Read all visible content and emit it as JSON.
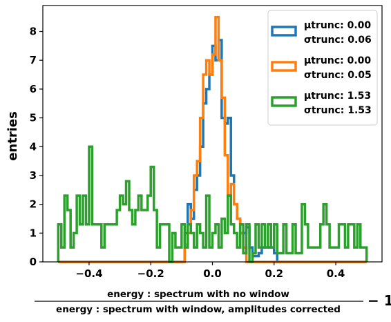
{
  "chart_data": {
    "type": "histogram",
    "xlim": [
      -0.55,
      0.55
    ],
    "ylim": [
      0,
      8.9
    ],
    "x_ticks": [
      -0.4,
      -0.2,
      0.0,
      0.2,
      0.4
    ],
    "x_tick_labels": [
      "−0.4",
      "−0.2",
      "0.0",
      "0.2",
      "0.4"
    ],
    "y_ticks": [
      0,
      1,
      2,
      3,
      4,
      5,
      6,
      7,
      8
    ],
    "y_tick_labels": [
      "0",
      "1",
      "2",
      "3",
      "4",
      "5",
      "6",
      "7",
      "8"
    ],
    "ylabel": "entries",
    "xlabel": {
      "numerator": "energy :  spectrum with no window",
      "denominator": "energy : spectrum with window,  amplitudes corrected",
      "suffix": "− 1"
    },
    "legend_position": "top-right",
    "series": [
      {
        "mu_label": "μtrunc: 0.00",
        "sigma_label": "σtrunc: 0.06",
        "color": "#1f77b4",
        "bins": [
          [
            -0.5,
            0
          ],
          [
            -0.1,
            0
          ],
          [
            -0.09,
            1
          ],
          [
            -0.08,
            2
          ],
          [
            -0.07,
            1.5
          ],
          [
            -0.06,
            2.5
          ],
          [
            -0.05,
            3
          ],
          [
            -0.04,
            4
          ],
          [
            -0.03,
            5.5
          ],
          [
            -0.02,
            6
          ],
          [
            -0.01,
            6.5
          ],
          [
            0.0,
            7.5
          ],
          [
            0.01,
            7
          ],
          [
            0.02,
            7.7
          ],
          [
            0.03,
            5
          ],
          [
            0.04,
            4.8
          ],
          [
            0.05,
            5
          ],
          [
            0.06,
            3
          ],
          [
            0.07,
            2
          ],
          [
            0.08,
            1.5
          ],
          [
            0.09,
            1
          ],
          [
            0.1,
            1
          ],
          [
            0.11,
            1.2
          ],
          [
            0.12,
            0.5
          ],
          [
            0.13,
            0.2
          ],
          [
            0.15,
            0.3
          ],
          [
            0.16,
            0.5
          ],
          [
            0.2,
            0.3
          ],
          [
            0.21,
            0
          ]
        ],
        "end": 0.5
      },
      {
        "mu_label": "μtrunc: 0.00",
        "sigma_label": "σtrunc: 0.05",
        "color": "#ff7f0e",
        "bins": [
          [
            -0.5,
            0
          ],
          [
            -0.1,
            0
          ],
          [
            -0.09,
            0.6
          ],
          [
            -0.08,
            1
          ],
          [
            -0.07,
            1.8
          ],
          [
            -0.06,
            3
          ],
          [
            -0.05,
            3.5
          ],
          [
            -0.04,
            5
          ],
          [
            -0.03,
            6.5
          ],
          [
            -0.02,
            7
          ],
          [
            -0.01,
            6.5
          ],
          [
            0.0,
            7.2
          ],
          [
            0.01,
            8.5
          ],
          [
            0.02,
            7
          ],
          [
            0.03,
            5.7
          ],
          [
            0.04,
            3.7
          ],
          [
            0.05,
            2.3
          ],
          [
            0.06,
            2.7
          ],
          [
            0.07,
            2
          ],
          [
            0.08,
            1.5
          ],
          [
            0.09,
            1
          ],
          [
            0.1,
            0.5
          ],
          [
            0.11,
            0
          ]
        ],
        "end": 0.5
      },
      {
        "mu_label": "μtrunc: 1.53",
        "sigma_label": "σtrunc: 1.53",
        "color": "#2ca02c",
        "bins": [
          [
            -0.5,
            1.3
          ],
          [
            -0.49,
            0.5
          ],
          [
            -0.48,
            2.3
          ],
          [
            -0.47,
            1.8
          ],
          [
            -0.46,
            0.5
          ],
          [
            -0.45,
            1
          ],
          [
            -0.44,
            2.3
          ],
          [
            -0.43,
            1.3
          ],
          [
            -0.42,
            2.3
          ],
          [
            -0.41,
            1.3
          ],
          [
            -0.4,
            4.0
          ],
          [
            -0.39,
            1.3
          ],
          [
            -0.38,
            1.3
          ],
          [
            -0.37,
            1.3
          ],
          [
            -0.36,
            0.5
          ],
          [
            -0.35,
            1.3
          ],
          [
            -0.34,
            1.3
          ],
          [
            -0.33,
            1.3
          ],
          [
            -0.32,
            1.3
          ],
          [
            -0.31,
            1.8
          ],
          [
            -0.3,
            2.3
          ],
          [
            -0.29,
            2.0
          ],
          [
            -0.28,
            2.8
          ],
          [
            -0.27,
            1.8
          ],
          [
            -0.26,
            1.3
          ],
          [
            -0.25,
            1.8
          ],
          [
            -0.24,
            2.3
          ],
          [
            -0.23,
            1.8
          ],
          [
            -0.22,
            1.8
          ],
          [
            -0.21,
            2.3
          ],
          [
            -0.2,
            3.3
          ],
          [
            -0.19,
            1.8
          ],
          [
            -0.18,
            0.5
          ],
          [
            -0.17,
            1.3
          ],
          [
            -0.16,
            1.3
          ],
          [
            -0.15,
            1.3
          ],
          [
            -0.14,
            0
          ],
          [
            -0.13,
            1
          ],
          [
            -0.12,
            0.5
          ],
          [
            -0.11,
            0.5
          ],
          [
            -0.1,
            1.3
          ],
          [
            -0.09,
            0.5
          ],
          [
            -0.08,
            1.3
          ],
          [
            -0.07,
            1
          ],
          [
            -0.06,
            0.5
          ],
          [
            -0.05,
            1.3
          ],
          [
            -0.04,
            1
          ],
          [
            -0.03,
            0.5
          ],
          [
            -0.02,
            2.3
          ],
          [
            -0.01,
            0.5
          ],
          [
            0.0,
            1
          ],
          [
            0.01,
            1.3
          ],
          [
            0.02,
            0.5
          ],
          [
            0.03,
            1.5
          ],
          [
            0.04,
            1
          ],
          [
            0.05,
            2.3
          ],
          [
            0.06,
            1.3
          ],
          [
            0.07,
            1
          ],
          [
            0.08,
            0.5
          ],
          [
            0.09,
            1.3
          ],
          [
            0.1,
            0.3
          ],
          [
            0.11,
            1.3
          ],
          [
            0.12,
            0
          ],
          [
            0.13,
            0.3
          ],
          [
            0.14,
            1.3
          ],
          [
            0.15,
            0.5
          ],
          [
            0.16,
            1.3
          ],
          [
            0.17,
            0.5
          ],
          [
            0.18,
            1.3
          ],
          [
            0.19,
            0.5
          ],
          [
            0.2,
            1.3
          ],
          [
            0.21,
            0.3
          ],
          [
            0.22,
            0.3
          ],
          [
            0.23,
            1.3
          ],
          [
            0.24,
            0.3
          ],
          [
            0.25,
            0.3
          ],
          [
            0.26,
            1.3
          ],
          [
            0.27,
            0.3
          ],
          [
            0.28,
            0.3
          ],
          [
            0.29,
            2.0
          ],
          [
            0.3,
            1.3
          ],
          [
            0.31,
            0.5
          ],
          [
            0.32,
            0.5
          ],
          [
            0.33,
            0.5
          ],
          [
            0.34,
            0.5
          ],
          [
            0.35,
            1.3
          ],
          [
            0.36,
            2.0
          ],
          [
            0.37,
            1.3
          ],
          [
            0.38,
            0.5
          ],
          [
            0.39,
            0.5
          ],
          [
            0.4,
            0.5
          ],
          [
            0.41,
            1.3
          ],
          [
            0.42,
            1.3
          ],
          [
            0.43,
            0.5
          ],
          [
            0.44,
            1.3
          ],
          [
            0.45,
            1.3
          ],
          [
            0.46,
            0.5
          ],
          [
            0.47,
            1.3
          ],
          [
            0.48,
            0.5
          ],
          [
            0.49,
            0.5
          ]
        ],
        "end": 0.5
      }
    ]
  }
}
